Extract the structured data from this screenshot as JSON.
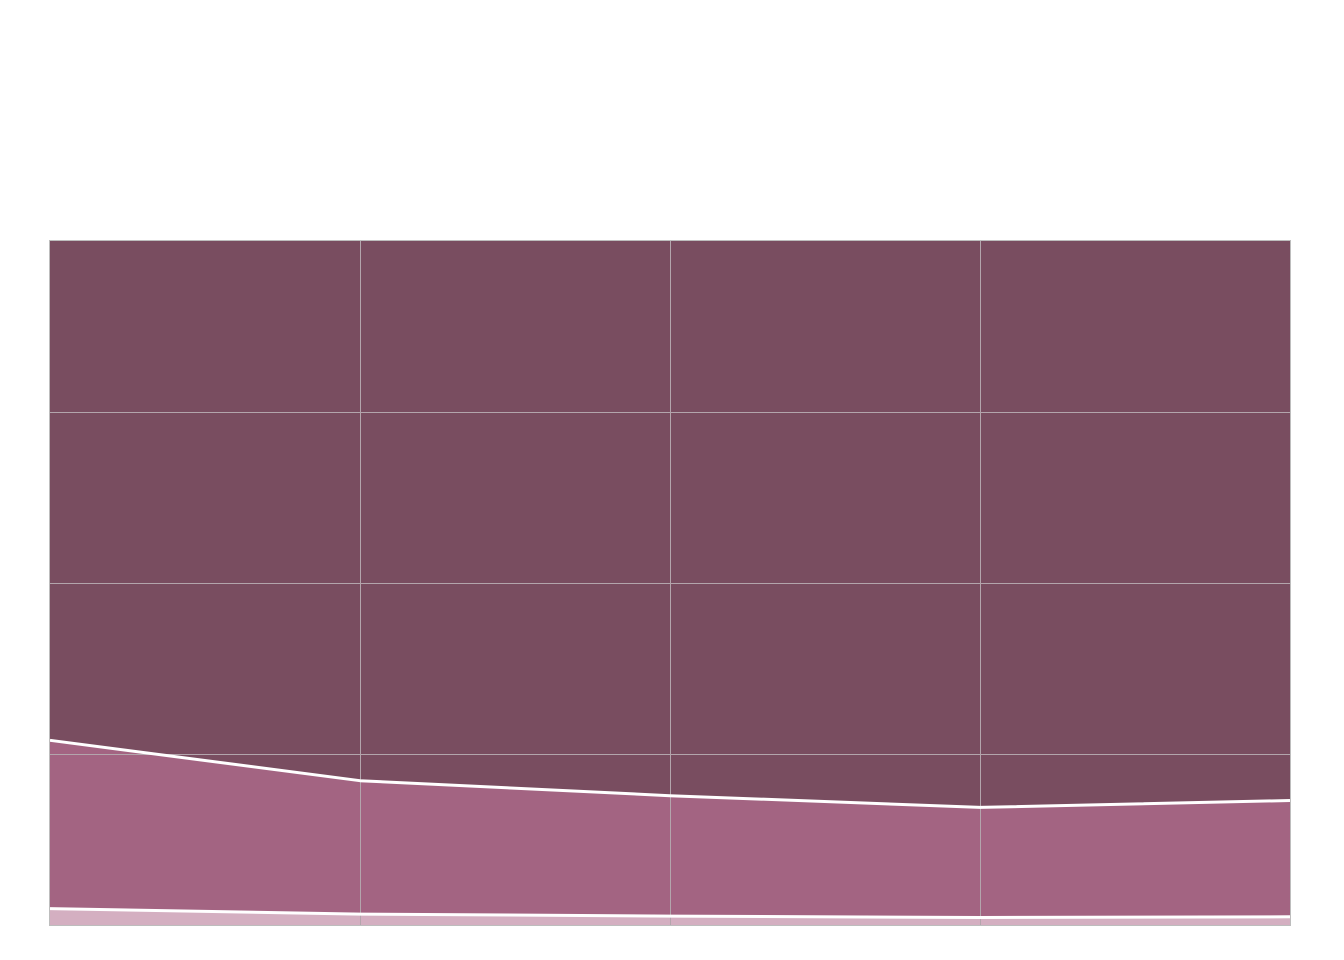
{
  "chart_data": {
    "type": "area",
    "stacking": "percent",
    "categories": [
      "",
      "",
      "",
      "",
      ""
    ],
    "series": [
      {
        "values": [
          2.4,
          1.6,
          1.3,
          1.1,
          1.2
        ],
        "color": "#d4afc1"
      },
      {
        "values": [
          24.6,
          19.5,
          17.6,
          16.1,
          17.0
        ],
        "color": "#a36482"
      },
      {
        "values": [
          73.0,
          78.9,
          81.1,
          82.8,
          81.8
        ],
        "color": "#794d60"
      }
    ],
    "ylim": [
      0,
      100
    ],
    "grid": true,
    "legend": "none",
    "title": "",
    "xlabel": "",
    "ylabel": ""
  }
}
